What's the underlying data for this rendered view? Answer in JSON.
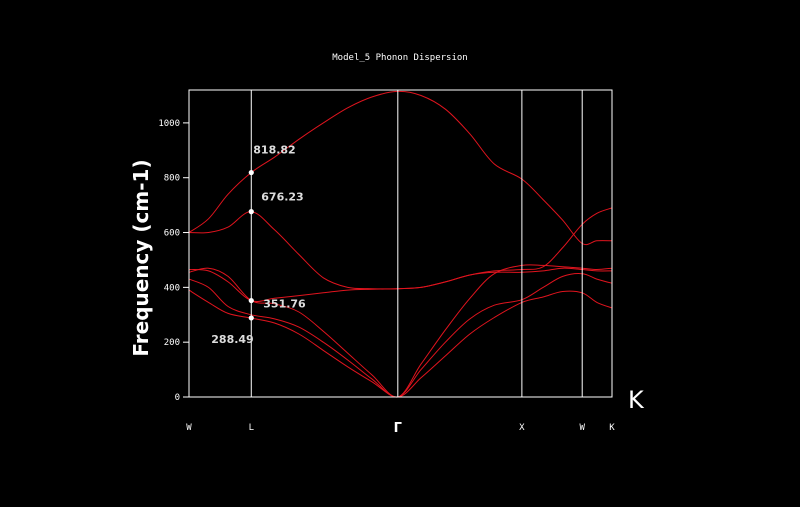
{
  "chart_data": {
    "type": "line",
    "title": "Model_5 Phonon Dispersion",
    "ylabel": "Frequency (cm-1)",
    "xlabel": "",
    "ylim": [
      0,
      1120
    ],
    "yticks": [
      0,
      200,
      400,
      600,
      800,
      1000
    ],
    "high_symmetry_points": [
      {
        "label": "W",
        "x": 0
      },
      {
        "label": "L",
        "x": 0.255
      },
      {
        "label": "Γ",
        "x": 0.855
      },
      {
        "label": "X",
        "x": 1.363
      },
      {
        "label": "W",
        "x": 1.61
      },
      {
        "label": "K",
        "x": 1.732
      }
    ],
    "corner_label": "K",
    "annotations": [
      {
        "text": "818.82",
        "x": 0.255,
        "y": 818.82
      },
      {
        "text": "676.23",
        "x": 0.255,
        "y": 676.23
      },
      {
        "text": "351.76",
        "x": 0.255,
        "y": 351.76
      },
      {
        "text": "288.49",
        "x": 0.255,
        "y": 288.49
      }
    ],
    "grid": false,
    "series": [
      {
        "x": [
          0,
          0.08,
          0.16,
          0.255,
          0.35,
          0.45,
          0.55,
          0.65,
          0.75,
          0.855,
          0.95,
          1.05,
          1.15,
          1.25,
          1.363,
          1.45,
          1.53,
          1.61,
          1.67,
          1.732
        ],
        "values": [
          600,
          650,
          740,
          819,
          875,
          940,
          1000,
          1055,
          1095,
          1115,
          1100,
          1050,
          960,
          850,
          795,
          720,
          645,
          560,
          570,
          570
        ]
      },
      {
        "x": [
          0,
          0.08,
          0.16,
          0.255,
          0.35,
          0.45,
          0.55,
          0.65,
          0.75,
          0.855,
          0.95,
          1.05,
          1.15,
          1.25,
          1.363,
          1.45,
          1.53,
          1.61,
          1.67,
          1.732
        ],
        "values": [
          600,
          600,
          620,
          676,
          610,
          520,
          435,
          400,
          395,
          395,
          400,
          420,
          445,
          460,
          465,
          475,
          545,
          630,
          670,
          690
        ]
      },
      {
        "x": [
          0,
          0.08,
          0.16,
          0.255,
          0.35,
          0.45,
          0.55,
          0.65,
          0.75,
          0.855,
          0.95,
          1.05,
          1.15,
          1.25,
          1.363,
          1.45,
          1.53,
          1.61,
          1.67,
          1.732
        ],
        "values": [
          465,
          460,
          420,
          352,
          360,
          370,
          380,
          390,
          393,
          395,
          400,
          420,
          445,
          455,
          455,
          460,
          470,
          465,
          460,
          460
        ]
      },
      {
        "x": [
          0,
          0.08,
          0.16,
          0.255,
          0.35,
          0.45,
          0.55,
          0.65,
          0.75,
          0.855,
          0.95,
          1.05,
          1.15,
          1.25,
          1.363,
          1.45,
          1.53,
          1.61,
          1.67,
          1.732
        ],
        "values": [
          455,
          470,
          440,
          352,
          340,
          310,
          240,
          160,
          80,
          0,
          120,
          245,
          360,
          450,
          480,
          480,
          475,
          470,
          465,
          470
        ]
      },
      {
        "x": [
          0,
          0.08,
          0.16,
          0.255,
          0.35,
          0.45,
          0.55,
          0.65,
          0.75,
          0.855,
          0.95,
          1.05,
          1.15,
          1.25,
          1.363,
          1.45,
          1.53,
          1.61,
          1.67,
          1.732
        ],
        "values": [
          430,
          400,
          330,
          300,
          285,
          255,
          200,
          135,
          65,
          0,
          100,
          200,
          285,
          335,
          355,
          400,
          440,
          450,
          430,
          415
        ]
      },
      {
        "x": [
          0,
          0.08,
          0.16,
          0.255,
          0.35,
          0.45,
          0.55,
          0.65,
          0.75,
          0.855,
          0.95,
          1.05,
          1.15,
          1.25,
          1.363,
          1.45,
          1.53,
          1.61,
          1.67,
          1.732
        ],
        "values": [
          390,
          345,
          305,
          288,
          270,
          230,
          170,
          110,
          55,
          0,
          70,
          150,
          230,
          290,
          345,
          365,
          385,
          380,
          345,
          325
        ]
      }
    ]
  }
}
